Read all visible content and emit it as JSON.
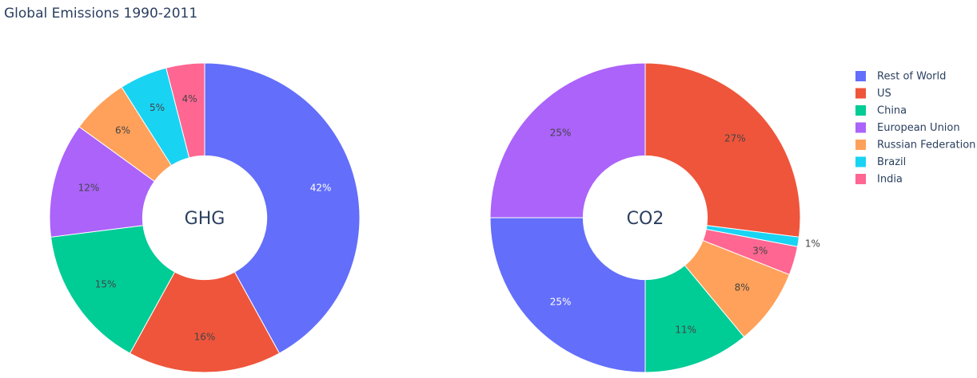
{
  "chart_data": {
    "type": "pie",
    "title": "Global Emissions 1990-2011",
    "labels": [
      "Rest of World",
      "US",
      "China",
      "European Union",
      "Russian Federation",
      "Brazil",
      "India"
    ],
    "colors": {
      "Rest of World": "#636efa",
      "US": "#ef553b",
      "China": "#00cc96",
      "European Union": "#ab63fa",
      "Russian Federation": "#ffa15a",
      "Brazil": "#19d3f3",
      "India": "#ff6692"
    },
    "legend_position": "right",
    "charts": [
      {
        "name": "GHG",
        "hole": 0.4,
        "values": [
          42,
          16,
          15,
          12,
          6,
          5,
          4
        ],
        "text_labels": [
          "42%",
          "16%",
          "15%",
          "12%",
          "6%",
          "5%",
          "4%"
        ]
      },
      {
        "name": "CO2",
        "hole": 0.4,
        "labels": [
          "US",
          "Brazil",
          "India",
          "Russian Federation",
          "China",
          "Rest of World",
          "European Union"
        ],
        "values": [
          27,
          1,
          3,
          8,
          11,
          25,
          25
        ],
        "text_labels": [
          "27%",
          "1%",
          "3%",
          "8%",
          "11%",
          "25%",
          "25%"
        ]
      }
    ]
  }
}
